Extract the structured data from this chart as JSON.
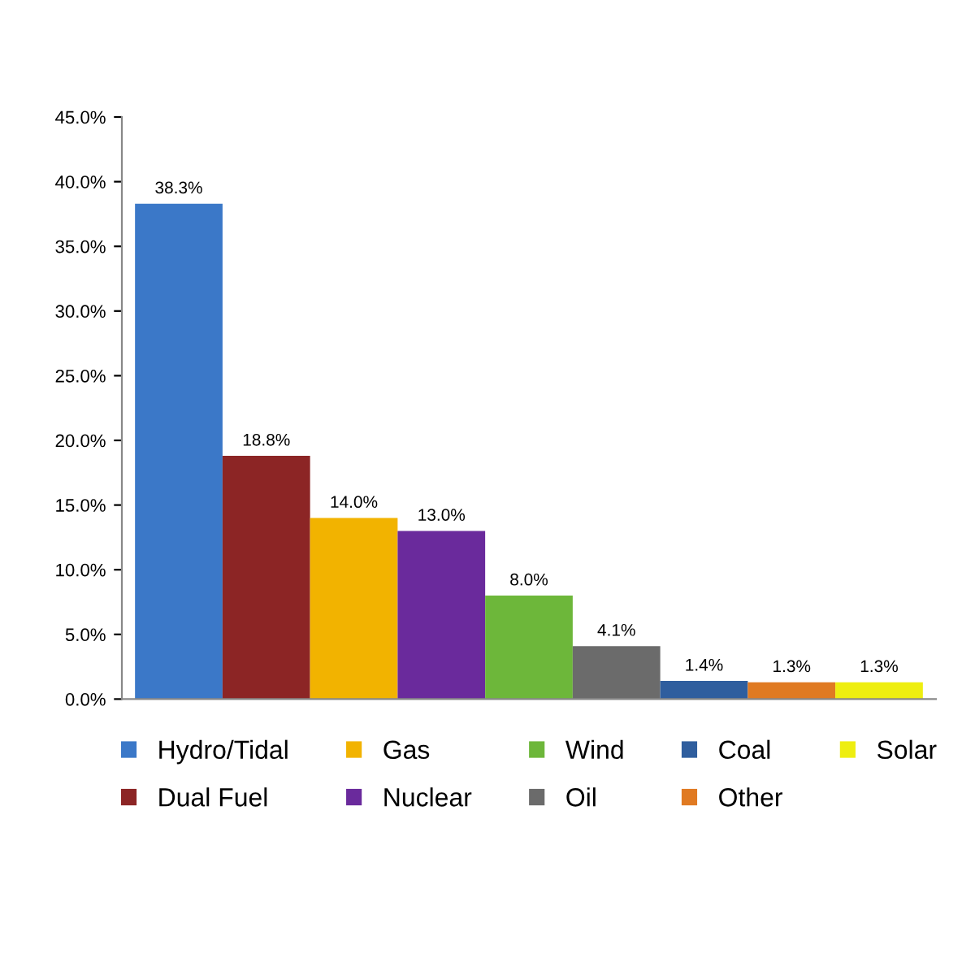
{
  "chart_data": {
    "type": "bar",
    "categories": [
      null,
      null,
      null,
      null,
      null,
      null,
      null,
      null,
      null
    ],
    "series": [
      {
        "name": "Hydro/Tidal",
        "color": "#3b78c8",
        "values": [
          38.3,
          null,
          null,
          null,
          null,
          null,
          null,
          null,
          null
        ],
        "value_labels": [
          "38.3%",
          null,
          null,
          null,
          null,
          null,
          null,
          null,
          null
        ]
      },
      {
        "name": "Dual Fuel",
        "color": "#8c2525",
        "values": [
          null,
          18.8,
          null,
          null,
          null,
          null,
          null,
          null,
          null
        ],
        "value_labels": [
          null,
          "18.8%",
          null,
          null,
          null,
          null,
          null,
          null,
          null
        ]
      },
      {
        "name": "Gas",
        "color": "#f2b300",
        "values": [
          null,
          null,
          14.0,
          null,
          null,
          null,
          null,
          null,
          null
        ],
        "value_labels": [
          null,
          null,
          "14.0%",
          null,
          null,
          null,
          null,
          null,
          null
        ]
      },
      {
        "name": "Nuclear",
        "color": "#6a2a9c",
        "values": [
          null,
          null,
          null,
          13.0,
          null,
          null,
          null,
          null,
          null
        ],
        "value_labels": [
          null,
          null,
          null,
          "13.0%",
          null,
          null,
          null,
          null,
          null
        ]
      },
      {
        "name": "Wind",
        "color": "#6db73a",
        "values": [
          null,
          null,
          null,
          null,
          8.0,
          null,
          null,
          null,
          null
        ],
        "value_labels": [
          null,
          null,
          null,
          null,
          "8.0%",
          null,
          null,
          null,
          null
        ]
      },
      {
        "name": "Oil",
        "color": "#6b6b6b",
        "values": [
          null,
          null,
          null,
          null,
          null,
          4.1,
          null,
          null,
          null
        ],
        "value_labels": [
          null,
          null,
          null,
          null,
          null,
          "4.1%",
          null,
          null,
          null
        ]
      },
      {
        "name": "Coal",
        "color": "#2f5e9e",
        "values": [
          null,
          null,
          null,
          null,
          null,
          null,
          1.4,
          null,
          null
        ],
        "value_labels": [
          null,
          null,
          null,
          null,
          null,
          null,
          "1.4%",
          null,
          null
        ]
      },
      {
        "name": "Other",
        "color": "#e07a22",
        "values": [
          null,
          null,
          null,
          null,
          null,
          null,
          null,
          1.3,
          null
        ],
        "value_labels": [
          null,
          null,
          null,
          null,
          null,
          null,
          null,
          "1.3%",
          null
        ]
      },
      {
        "name": "Solar",
        "color": "#eeee10",
        "values": [
          null,
          null,
          null,
          null,
          null,
          null,
          null,
          null,
          1.3
        ],
        "value_labels": [
          null,
          null,
          null,
          null,
          null,
          null,
          null,
          null,
          "1.3%"
        ]
      }
    ],
    "ylim": [
      0,
      45
    ],
    "yticks": [
      {
        "value": 0,
        "label": "0.0%"
      },
      {
        "value": 5,
        "label": "5.0%"
      },
      {
        "value": 10,
        "label": "10.0%"
      },
      {
        "value": 15,
        "label": "15.0%"
      },
      {
        "value": 20,
        "label": "20.0%"
      },
      {
        "value": 25,
        "label": "25.0%"
      },
      {
        "value": 30,
        "label": "30.0%"
      },
      {
        "value": 35,
        "label": "35.0%"
      },
      {
        "value": 40,
        "label": "40.0%"
      },
      {
        "value": 45,
        "label": "45.0%"
      }
    ],
    "grid": false,
    "legend": "bottom"
  }
}
